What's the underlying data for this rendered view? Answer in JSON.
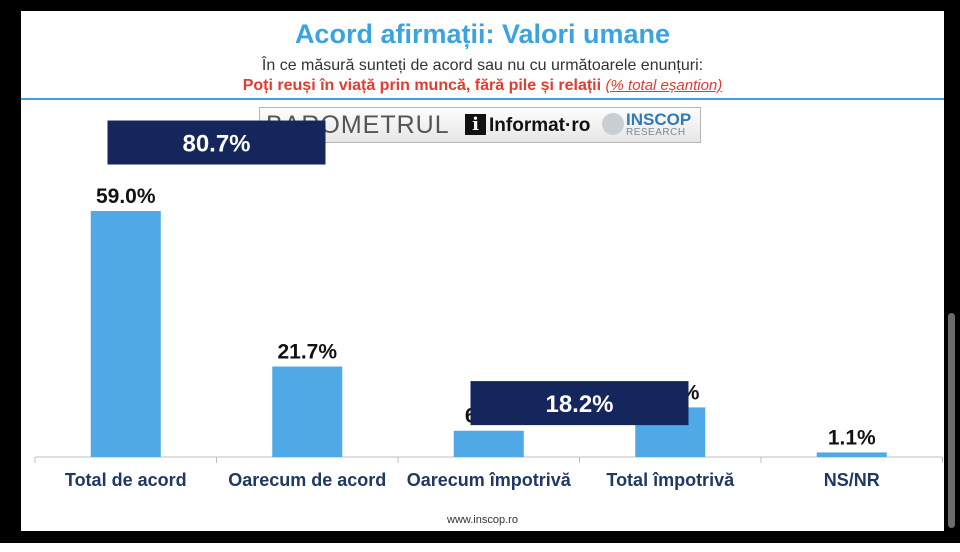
{
  "header": {
    "title": "Acord afirmații: Valori umane",
    "subtitle": "În ce măsură sunteți de acord sau nu cu următoarele enunțuri:",
    "statement": "Poți reuși în viață prin muncă, fără pile și relații",
    "note": "(% total eșantion)"
  },
  "logo": {
    "barometrul": "BAROMETRUL",
    "informat_i": "i",
    "informat": "Informat·ro",
    "inscop": "INSCOP",
    "research": "RESEARCH"
  },
  "footer": "www.inscop.ro",
  "colors": {
    "bar": "#4fa9e6",
    "group_box": "#14265c",
    "title": "#3aa3e0",
    "accent": "#e23b2f"
  },
  "chart_data": {
    "type": "bar",
    "categories": [
      "Total de acord",
      "Oarecum de acord",
      "Oarecum împotrivă",
      "Total împotrivă",
      "NS/NR"
    ],
    "values": [
      59.0,
      21.7,
      6.3,
      11.9,
      1.1
    ],
    "value_labels": [
      "59.0%",
      "21.7%",
      "6.3%",
      "11.9%",
      "1.1%"
    ],
    "ylim": [
      0,
      59
    ],
    "grid": false,
    "group_totals": [
      {
        "label": "80.7%",
        "value": 80.7,
        "covers": [
          0,
          1
        ]
      },
      {
        "label": "18.2%",
        "value": 18.2,
        "covers": [
          2,
          3
        ]
      }
    ]
  }
}
